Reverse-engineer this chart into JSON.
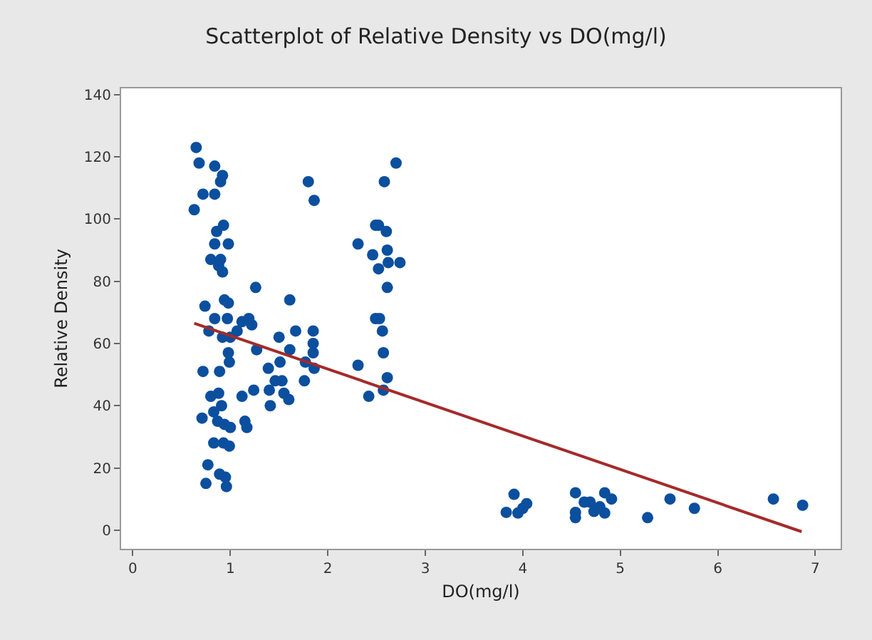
{
  "chart_data": {
    "type": "scatter",
    "title": "Scatterplot of Relative Density vs DO(mg/l)",
    "xlabel": "DO(mg/l)",
    "ylabel": "Relative Density",
    "xlim": [
      -0.12,
      7.26
    ],
    "ylim": [
      -6,
      142
    ],
    "xticks": [
      0,
      1,
      2,
      3,
      4,
      5,
      6,
      7
    ],
    "yticks": [
      0,
      20,
      40,
      60,
      80,
      100,
      120,
      140
    ],
    "grid": false,
    "marker": "circle",
    "series": [
      {
        "color": "#0b4f9e",
        "x": [
          0.65,
          0.68,
          0.63,
          0.72,
          0.84,
          0.84,
          0.92,
          0.9,
          0.93,
          0.86,
          0.84,
          0.98,
          0.8,
          0.9,
          0.88,
          0.92,
          0.94,
          0.98,
          0.74,
          0.84,
          0.97,
          0.78,
          0.92,
          1.0,
          0.98,
          0.99,
          0.72,
          0.89,
          0.8,
          0.88,
          0.91,
          0.83,
          0.71,
          0.87,
          0.94,
          1.0,
          0.83,
          0.93,
          0.99,
          0.77,
          0.75,
          0.89,
          0.95,
          0.96,
          1.12,
          1.19,
          1.22,
          1.07,
          1.26,
          1.27,
          1.24,
          1.12,
          1.15,
          1.17,
          1.39,
          1.4,
          1.41,
          1.5,
          1.51,
          1.46,
          1.53,
          1.55,
          1.6,
          1.61,
          1.61,
          1.67,
          1.77,
          1.76,
          1.85,
          1.85,
          1.85,
          1.86,
          1.8,
          1.86,
          2.31,
          2.46,
          2.49,
          2.52,
          2.6,
          2.61,
          2.62,
          2.52,
          2.74,
          2.58,
          2.7,
          2.61,
          2.49,
          2.53,
          2.56,
          2.57,
          2.31,
          2.61,
          2.57,
          2.42,
          3.91,
          3.83,
          3.95,
          4.0,
          4.04,
          4.54,
          4.54,
          4.54,
          4.63,
          4.69,
          4.73,
          4.79,
          4.84,
          4.84,
          4.91,
          5.28,
          5.51,
          5.76,
          6.57,
          6.87
        ],
        "values": [
          123,
          118,
          103,
          108,
          108,
          117,
          114,
          112,
          98,
          96,
          92,
          92,
          87,
          87,
          85,
          83,
          74,
          73,
          72,
          68,
          68,
          64,
          62,
          62,
          57,
          54,
          51,
          51,
          43,
          44,
          40,
          38,
          36,
          35,
          34,
          33,
          28,
          28,
          27,
          21,
          15,
          18,
          17,
          14,
          67,
          68,
          66,
          64,
          78,
          58,
          45,
          43,
          35,
          33,
          52,
          45,
          40,
          62,
          54,
          48,
          48,
          44,
          42,
          74,
          58,
          64,
          54,
          48,
          64,
          57,
          60,
          52,
          112,
          106,
          92,
          88.5,
          98,
          98,
          96,
          90,
          86,
          84,
          86,
          112,
          118,
          78,
          68,
          68,
          64,
          57,
          53,
          49,
          45,
          43,
          11.5,
          5.7,
          5.5,
          7,
          8.5,
          12,
          5.7,
          4,
          9,
          9,
          6,
          7.5,
          12,
          5.5,
          10,
          4,
          10,
          7,
          10,
          8
        ]
      },
      {
        "type": "line",
        "color": "#a52a2a",
        "x": [
          0.63,
          6.86
        ],
        "values": [
          66.5,
          -0.5
        ],
        "marker": "none"
      }
    ]
  }
}
